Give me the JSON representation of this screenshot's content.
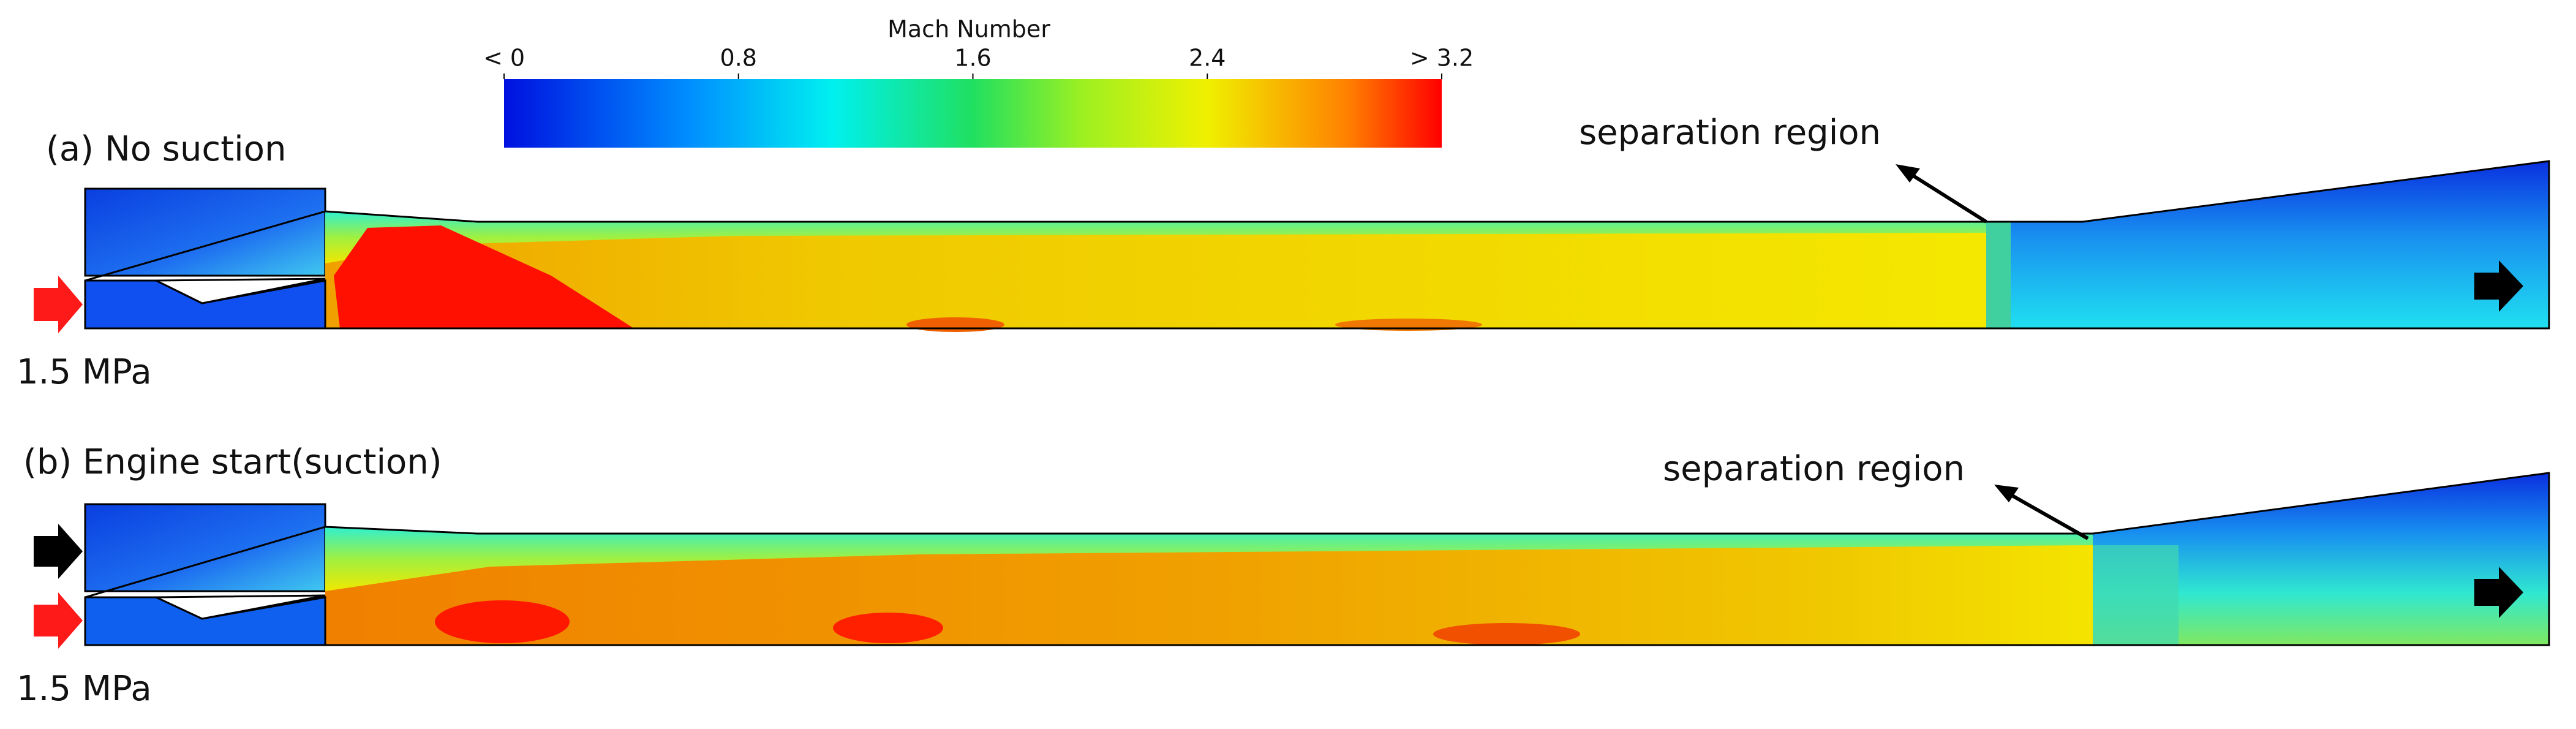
{
  "colorbar": {
    "title": "Mach Number",
    "range": [
      0,
      3.2
    ],
    "ticks": [
      {
        "value": 0,
        "label": "< 0"
      },
      0.8,
      1.6,
      2.4,
      {
        "value": 3.2,
        "label": "> 3.2"
      }
    ]
  },
  "panels": [
    {
      "label": "(a) No suction",
      "annotation": "separation region",
      "inlet_pressure": "1.5 MPa"
    },
    {
      "label": "(b) Engine start(suction)",
      "annotation": "separation region",
      "inlet_pressure": "1.5 MPa"
    }
  ]
}
